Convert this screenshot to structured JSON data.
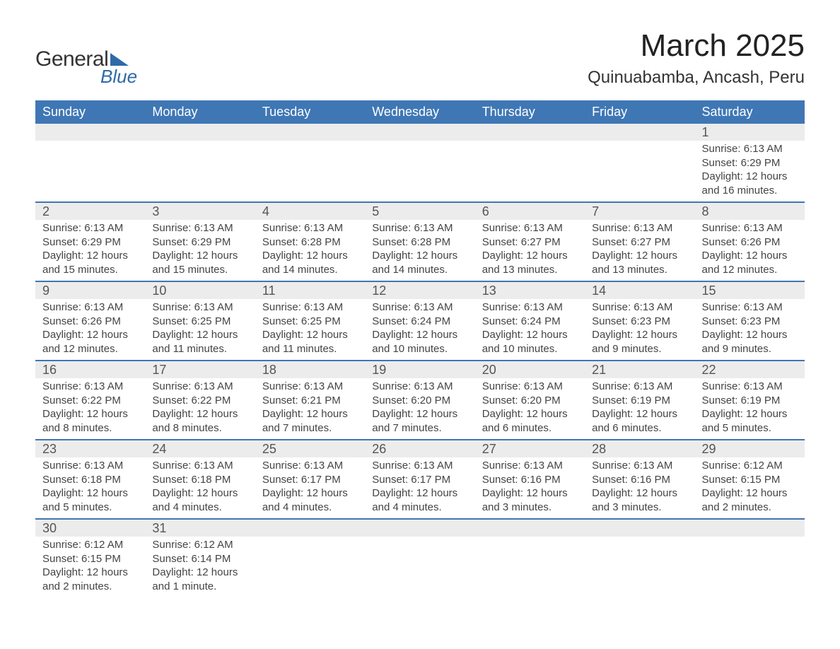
{
  "brand": {
    "word1": "General",
    "word2": "Blue",
    "accent_color": "#2e6aa8"
  },
  "title": "March 2025",
  "location": "Quinuabamba, Ancash, Peru",
  "colors": {
    "header_bg": "#3f77b5",
    "header_fg": "#ffffff",
    "daynum_bg": "#ececec",
    "row_divider": "#3f77b5",
    "text": "#333333"
  },
  "typography": {
    "title_fontsize": 44,
    "location_fontsize": 24,
    "header_fontsize": 18,
    "body_fontsize": 15
  },
  "day_headers": [
    "Sunday",
    "Monday",
    "Tuesday",
    "Wednesday",
    "Thursday",
    "Friday",
    "Saturday"
  ],
  "weeks": [
    [
      null,
      null,
      null,
      null,
      null,
      null,
      {
        "n": "1",
        "sunrise": "Sunrise: 6:13 AM",
        "sunset": "Sunset: 6:29 PM",
        "daylight": "Daylight: 12 hours and 16 minutes."
      }
    ],
    [
      {
        "n": "2",
        "sunrise": "Sunrise: 6:13 AM",
        "sunset": "Sunset: 6:29 PM",
        "daylight": "Daylight: 12 hours and 15 minutes."
      },
      {
        "n": "3",
        "sunrise": "Sunrise: 6:13 AM",
        "sunset": "Sunset: 6:29 PM",
        "daylight": "Daylight: 12 hours and 15 minutes."
      },
      {
        "n": "4",
        "sunrise": "Sunrise: 6:13 AM",
        "sunset": "Sunset: 6:28 PM",
        "daylight": "Daylight: 12 hours and 14 minutes."
      },
      {
        "n": "5",
        "sunrise": "Sunrise: 6:13 AM",
        "sunset": "Sunset: 6:28 PM",
        "daylight": "Daylight: 12 hours and 14 minutes."
      },
      {
        "n": "6",
        "sunrise": "Sunrise: 6:13 AM",
        "sunset": "Sunset: 6:27 PM",
        "daylight": "Daylight: 12 hours and 13 minutes."
      },
      {
        "n": "7",
        "sunrise": "Sunrise: 6:13 AM",
        "sunset": "Sunset: 6:27 PM",
        "daylight": "Daylight: 12 hours and 13 minutes."
      },
      {
        "n": "8",
        "sunrise": "Sunrise: 6:13 AM",
        "sunset": "Sunset: 6:26 PM",
        "daylight": "Daylight: 12 hours and 12 minutes."
      }
    ],
    [
      {
        "n": "9",
        "sunrise": "Sunrise: 6:13 AM",
        "sunset": "Sunset: 6:26 PM",
        "daylight": "Daylight: 12 hours and 12 minutes."
      },
      {
        "n": "10",
        "sunrise": "Sunrise: 6:13 AM",
        "sunset": "Sunset: 6:25 PM",
        "daylight": "Daylight: 12 hours and 11 minutes."
      },
      {
        "n": "11",
        "sunrise": "Sunrise: 6:13 AM",
        "sunset": "Sunset: 6:25 PM",
        "daylight": "Daylight: 12 hours and 11 minutes."
      },
      {
        "n": "12",
        "sunrise": "Sunrise: 6:13 AM",
        "sunset": "Sunset: 6:24 PM",
        "daylight": "Daylight: 12 hours and 10 minutes."
      },
      {
        "n": "13",
        "sunrise": "Sunrise: 6:13 AM",
        "sunset": "Sunset: 6:24 PM",
        "daylight": "Daylight: 12 hours and 10 minutes."
      },
      {
        "n": "14",
        "sunrise": "Sunrise: 6:13 AM",
        "sunset": "Sunset: 6:23 PM",
        "daylight": "Daylight: 12 hours and 9 minutes."
      },
      {
        "n": "15",
        "sunrise": "Sunrise: 6:13 AM",
        "sunset": "Sunset: 6:23 PM",
        "daylight": "Daylight: 12 hours and 9 minutes."
      }
    ],
    [
      {
        "n": "16",
        "sunrise": "Sunrise: 6:13 AM",
        "sunset": "Sunset: 6:22 PM",
        "daylight": "Daylight: 12 hours and 8 minutes."
      },
      {
        "n": "17",
        "sunrise": "Sunrise: 6:13 AM",
        "sunset": "Sunset: 6:22 PM",
        "daylight": "Daylight: 12 hours and 8 minutes."
      },
      {
        "n": "18",
        "sunrise": "Sunrise: 6:13 AM",
        "sunset": "Sunset: 6:21 PM",
        "daylight": "Daylight: 12 hours and 7 minutes."
      },
      {
        "n": "19",
        "sunrise": "Sunrise: 6:13 AM",
        "sunset": "Sunset: 6:20 PM",
        "daylight": "Daylight: 12 hours and 7 minutes."
      },
      {
        "n": "20",
        "sunrise": "Sunrise: 6:13 AM",
        "sunset": "Sunset: 6:20 PM",
        "daylight": "Daylight: 12 hours and 6 minutes."
      },
      {
        "n": "21",
        "sunrise": "Sunrise: 6:13 AM",
        "sunset": "Sunset: 6:19 PM",
        "daylight": "Daylight: 12 hours and 6 minutes."
      },
      {
        "n": "22",
        "sunrise": "Sunrise: 6:13 AM",
        "sunset": "Sunset: 6:19 PM",
        "daylight": "Daylight: 12 hours and 5 minutes."
      }
    ],
    [
      {
        "n": "23",
        "sunrise": "Sunrise: 6:13 AM",
        "sunset": "Sunset: 6:18 PM",
        "daylight": "Daylight: 12 hours and 5 minutes."
      },
      {
        "n": "24",
        "sunrise": "Sunrise: 6:13 AM",
        "sunset": "Sunset: 6:18 PM",
        "daylight": "Daylight: 12 hours and 4 minutes."
      },
      {
        "n": "25",
        "sunrise": "Sunrise: 6:13 AM",
        "sunset": "Sunset: 6:17 PM",
        "daylight": "Daylight: 12 hours and 4 minutes."
      },
      {
        "n": "26",
        "sunrise": "Sunrise: 6:13 AM",
        "sunset": "Sunset: 6:17 PM",
        "daylight": "Daylight: 12 hours and 4 minutes."
      },
      {
        "n": "27",
        "sunrise": "Sunrise: 6:13 AM",
        "sunset": "Sunset: 6:16 PM",
        "daylight": "Daylight: 12 hours and 3 minutes."
      },
      {
        "n": "28",
        "sunrise": "Sunrise: 6:13 AM",
        "sunset": "Sunset: 6:16 PM",
        "daylight": "Daylight: 12 hours and 3 minutes."
      },
      {
        "n": "29",
        "sunrise": "Sunrise: 6:12 AM",
        "sunset": "Sunset: 6:15 PM",
        "daylight": "Daylight: 12 hours and 2 minutes."
      }
    ],
    [
      {
        "n": "30",
        "sunrise": "Sunrise: 6:12 AM",
        "sunset": "Sunset: 6:15 PM",
        "daylight": "Daylight: 12 hours and 2 minutes."
      },
      {
        "n": "31",
        "sunrise": "Sunrise: 6:12 AM",
        "sunset": "Sunset: 6:14 PM",
        "daylight": "Daylight: 12 hours and 1 minute."
      },
      null,
      null,
      null,
      null,
      null
    ]
  ]
}
